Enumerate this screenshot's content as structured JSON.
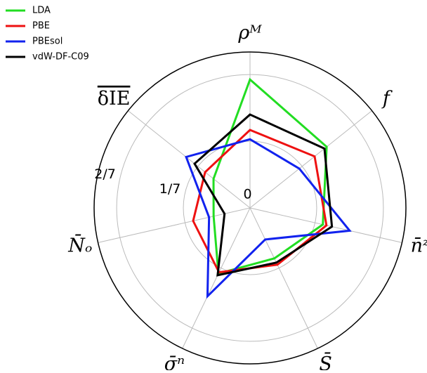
{
  "chart_data": {
    "type": "radar",
    "categories": [
      "ρᴹ",
      "f",
      "n̄ᶻ",
      "S̄",
      "σ̄ⁿ",
      "N̄ₒ",
      "δIE"
    ],
    "ylim": [
      0,
      0.334
    ],
    "yticks": [
      {
        "value": 0,
        "label": "0"
      },
      {
        "value": 0.142857,
        "label": "1/7"
      },
      {
        "value": 0.285714,
        "label": "2/7"
      }
    ],
    "grid": true,
    "legend": "upper left",
    "series": [
      {
        "name": "LDA",
        "color": "#22dd22",
        "values": [
          0.275,
          0.21,
          0.16,
          0.12,
          0.156,
          0.08,
          0.1
        ]
      },
      {
        "name": "PBE",
        "color": "#ee1111",
        "values": [
          0.167,
          0.177,
          0.168,
          0.135,
          0.153,
          0.125,
          0.123
        ]
      },
      {
        "name": "PBEsol",
        "color": "#1122ee",
        "values": [
          0.147,
          0.135,
          0.219,
          0.075,
          0.21,
          0.09,
          0.175
        ]
      },
      {
        "name": "vdW-DF-C09",
        "color": "#000000",
        "values": [
          0.2,
          0.204,
          0.18,
          0.13,
          0.16,
          0.056,
          0.152
        ]
      }
    ]
  }
}
